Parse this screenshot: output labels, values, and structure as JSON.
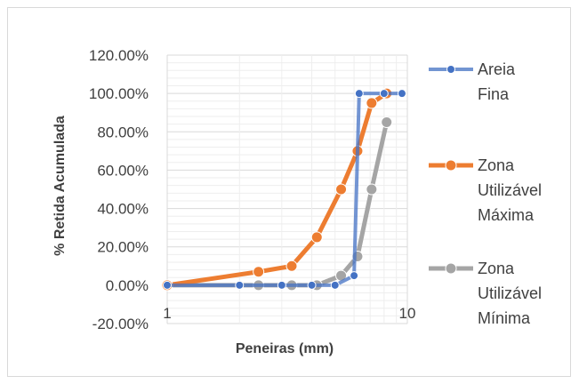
{
  "chart_data": {
    "type": "line",
    "xscale": "log",
    "xlim": [
      1,
      10
    ],
    "ylim": [
      -0.2,
      1.2
    ],
    "xlabel": "Peneiras (mm)",
    "ylabel": "% Retida Acumulada",
    "x_tick_labels": [
      "1",
      "10"
    ],
    "y_tick_labels": [
      "-20.00%",
      "0.00%",
      "20.00%",
      "40.00%",
      "60.00%",
      "80.00%",
      "100.00%",
      "120.00%"
    ],
    "y_ticks": [
      -0.2,
      0,
      0.2,
      0.4,
      0.6,
      0.8,
      1.0,
      1.2
    ],
    "grid": true,
    "legend_position": "right",
    "series": [
      {
        "name": "Areia Fina",
        "legend_lines": [
          "Areia",
          "Fina"
        ],
        "color": "#4472c4",
        "x": [
          1,
          2,
          3,
          4,
          5,
          6,
          6.3,
          8,
          9.5
        ],
        "y": [
          0,
          0,
          0,
          0,
          0,
          0.05,
          1.0,
          1.0,
          1.0
        ]
      },
      {
        "name": "Zona Utilizável Máxima",
        "legend_lines": [
          "Zona",
          "Utilizável",
          "Máxima"
        ],
        "color": "#ed7d31",
        "x": [
          1,
          2.4,
          3.3,
          4.2,
          5.3,
          6.2,
          7.1,
          8.2
        ],
        "y": [
          0,
          0.07,
          0.1,
          0.25,
          0.5,
          0.7,
          0.95,
          1.0
        ]
      },
      {
        "name": "Zona Utilizável Mínima",
        "legend_lines": [
          "Zona",
          "Utilizável",
          "Mínima"
        ],
        "color": "#a5a5a5",
        "x": [
          1,
          2.4,
          3.3,
          4.2,
          5.3,
          6.2,
          7.1,
          8.2
        ],
        "y": [
          0,
          0,
          0,
          0,
          0.05,
          0.15,
          0.5,
          0.85
        ]
      }
    ]
  }
}
